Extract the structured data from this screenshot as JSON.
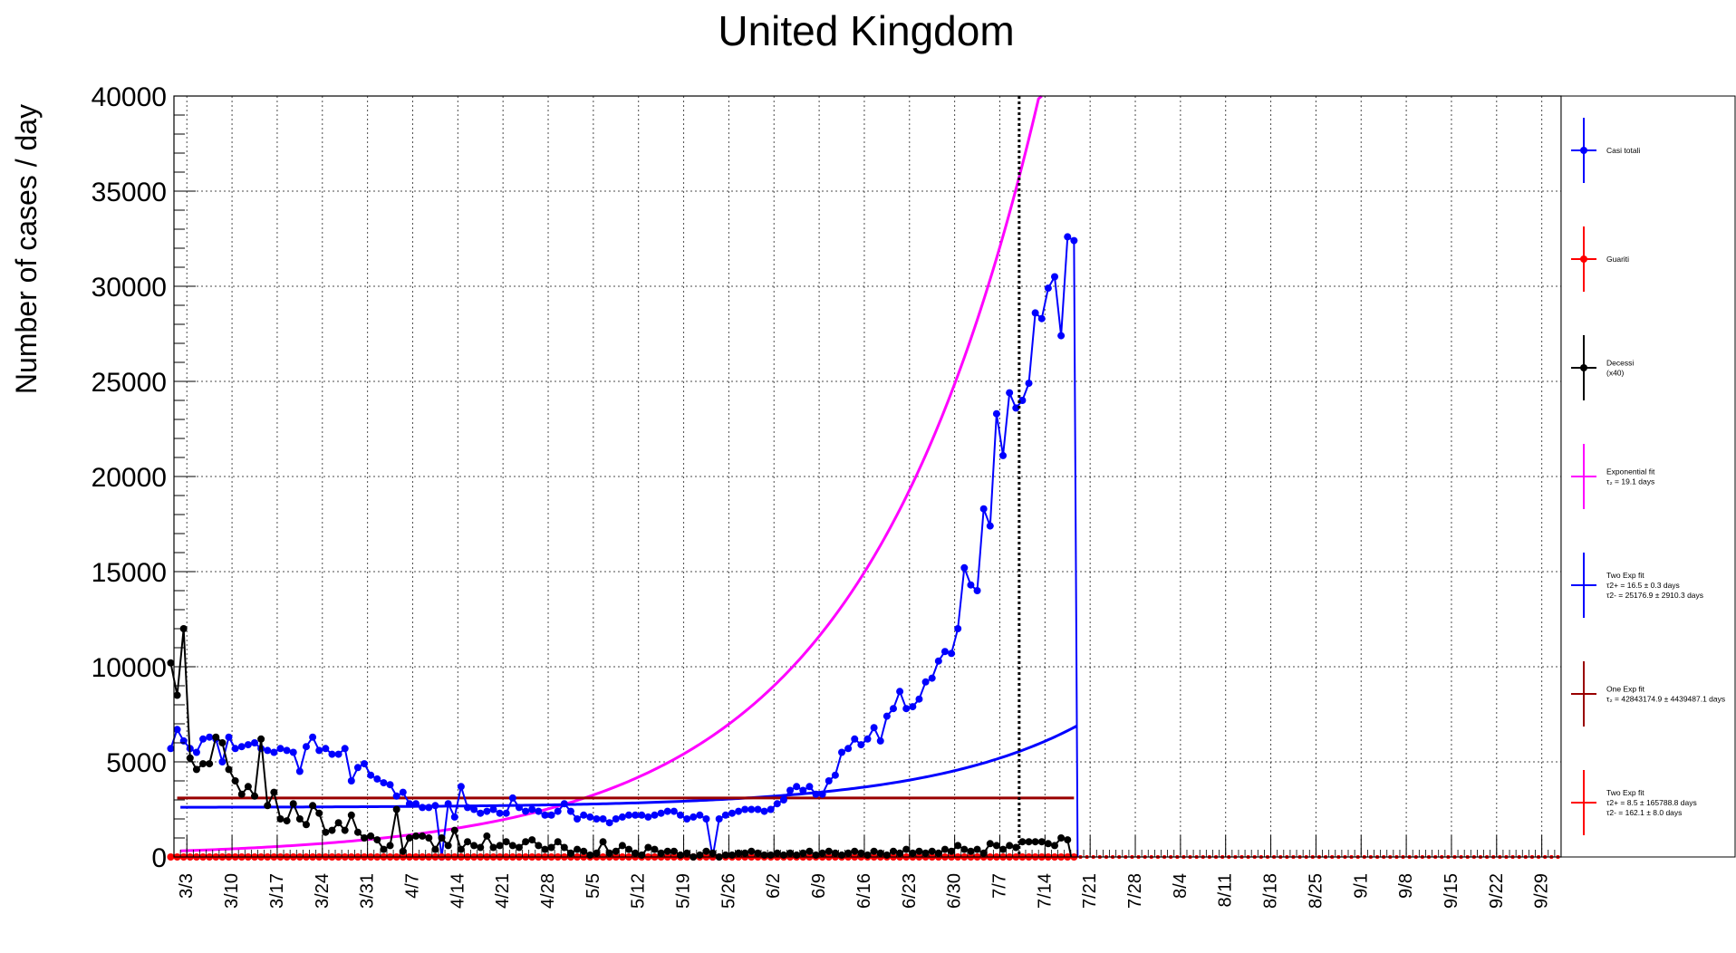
{
  "chart_data": {
    "type": "line",
    "title": "United Kingdom",
    "xlabel": "",
    "ylabel": "Number of cases / day",
    "ylim": [
      0,
      40000
    ],
    "xlim_days_from_mar1": [
      0,
      215
    ],
    "y_ticks": [
      "0",
      "5000",
      "10000",
      "15000",
      "20000",
      "25000",
      "30000",
      "35000",
      "40000"
    ],
    "x_tick_labels": [
      "3/3",
      "3/10",
      "3/17",
      "3/24",
      "3/31",
      "4/7",
      "4/14",
      "4/21",
      "4/28",
      "5/5",
      "5/12",
      "5/19",
      "5/26",
      "6/2",
      "6/9",
      "6/16",
      "6/23",
      "6/30",
      "7/7",
      "7/14",
      "7/21",
      "7/28",
      "8/4",
      "8/11",
      "8/18",
      "8/25",
      "9/1",
      "9/8",
      "9/15",
      "9/22",
      "9/29"
    ],
    "grid": true,
    "legend_position": "right",
    "cutoff_marker": "7/10",
    "colors": {
      "casi": "#0000ff",
      "guariti": "#ff0000",
      "decessi": "#000000",
      "exp_fit": "#ff00ff",
      "two_exp_fit": "#0000ff",
      "one_exp_fit": "#990000",
      "two_exp_fit_recovered": "#ff0000"
    },
    "series": [
      {
        "name": "Casi totali",
        "values": [
          5700,
          6700,
          6100,
          5700,
          5500,
          6200,
          6300,
          6200,
          5000,
          6300,
          5700,
          5800,
          5900,
          6000,
          5700,
          5600,
          5500,
          5700,
          5600,
          5500,
          4500,
          5800,
          6300,
          5600,
          5700,
          5400,
          5400,
          5700,
          4000,
          4700,
          4900,
          4300,
          4100,
          3900,
          3800,
          3200,
          3400,
          2800,
          2800,
          2600,
          2600,
          2700,
          0,
          2800,
          2100,
          3700,
          2600,
          2500,
          2300,
          2400,
          2500,
          2300,
          2300,
          3100,
          2600,
          2400,
          2500,
          2400,
          2200,
          2200,
          2400,
          2800,
          2400,
          2000,
          2200,
          2100,
          2000,
          2000,
          1800,
          2000,
          2100,
          2200,
          2200,
          2200,
          2100,
          2200,
          2300,
          2400,
          2400,
          2200,
          2000,
          2100,
          2200,
          2000,
          0,
          2000,
          2200,
          2300,
          2400,
          2500,
          2500,
          2500,
          2400,
          2500,
          2800,
          3000,
          3500,
          3700,
          3500,
          3700,
          3300,
          3300,
          4000,
          4300,
          5500,
          5700,
          6200,
          5900,
          6200,
          6800,
          6100,
          7400,
          7800,
          8700,
          7800,
          7900,
          8300,
          9200,
          9400,
          10300,
          10800,
          10700,
          12000,
          15200,
          14300,
          14000,
          18300,
          17400,
          23300,
          21100,
          24400,
          23600,
          24000,
          24900,
          28600,
          28300,
          29900,
          30500,
          27400,
          32600,
          32400
        ]
      },
      {
        "name": "Guariti",
        "values": [
          0,
          0,
          0,
          0,
          0,
          0,
          0,
          0,
          0,
          0,
          0,
          0,
          0,
          0,
          0,
          0,
          0,
          0,
          0,
          0,
          0,
          0,
          0,
          0,
          0,
          0,
          0,
          0,
          0,
          0,
          0,
          0,
          0,
          0,
          0,
          0,
          0,
          0,
          0,
          0,
          0,
          0,
          0,
          0,
          0,
          0,
          0,
          0,
          0,
          0,
          0,
          0,
          0,
          0,
          0,
          0,
          0,
          0,
          0,
          0,
          0,
          0,
          0,
          0,
          0,
          0,
          0,
          0,
          0,
          0,
          0,
          0,
          0,
          0,
          0,
          0,
          0,
          0,
          0,
          0,
          0,
          0,
          0,
          0,
          0,
          0,
          0,
          0,
          0,
          0,
          0,
          0,
          0,
          0,
          0,
          0,
          0,
          0,
          0,
          0,
          0,
          0,
          0,
          0,
          0,
          0,
          0,
          0,
          0,
          0,
          0,
          0,
          0,
          0,
          0,
          0,
          0,
          0,
          0,
          0,
          0,
          0,
          0,
          0,
          0,
          0,
          0,
          0,
          0,
          0,
          0,
          0,
          0,
          0,
          0,
          0,
          0,
          0,
          0,
          0,
          0
        ]
      },
      {
        "name": "Decessi",
        "note": "(x40)",
        "values": [
          10200,
          8500,
          12000,
          5200,
          4600,
          4900,
          4900,
          6300,
          6000,
          4600,
          4000,
          3300,
          3700,
          3200,
          6200,
          2700,
          3400,
          2000,
          1900,
          2800,
          2000,
          1700,
          2700,
          2300,
          1300,
          1400,
          1800,
          1400,
          2200,
          1300,
          1000,
          1100,
          900,
          400,
          600,
          2500,
          300,
          1000,
          1100,
          1100,
          1000,
          400,
          1000,
          600,
          1400,
          400,
          800,
          600,
          500,
          1100,
          500,
          600,
          800,
          600,
          500,
          800,
          900,
          600,
          400,
          500,
          800,
          500,
          200,
          400,
          300,
          100,
          200,
          800,
          200,
          300,
          600,
          400,
          200,
          100,
          500,
          400,
          200,
          300,
          300,
          100,
          200,
          0,
          100,
          300,
          200,
          0,
          100,
          100,
          200,
          200,
          300,
          200,
          100,
          100,
          200,
          100,
          200,
          100,
          200,
          300,
          100,
          200,
          300,
          200,
          100,
          200,
          300,
          200,
          100,
          300,
          200,
          100,
          300,
          200,
          400,
          200,
          300,
          200,
          300,
          200,
          400,
          300,
          600,
          400,
          300,
          400,
          200,
          700,
          600,
          400,
          600,
          500,
          800,
          800,
          800,
          800,
          700,
          600,
          1000,
          900
        ]
      }
    ],
    "fits": [
      {
        "name": "Exponential fit",
        "label_lines": [
          "Exponential fit",
          "τ₂ = 19.1  days"
        ],
        "model": "exp",
        "a": 308,
        "tau2": 19.1
      },
      {
        "name": "Two Exp fit",
        "label_lines": [
          "Two Exp fit",
          "τ2+ = 16.5 ± 0.3 days",
          "τ2- = 25176.9 ± 2910.3 days"
        ],
        "model": "two_exp",
        "a": 2600,
        "b": 12,
        "tau2": 16.5
      },
      {
        "name": "One Exp fit",
        "label_lines": [
          "One Exp fit",
          "τ₂ = 42843174.9  ± 4439487.1 days"
        ],
        "model": "const",
        "value": 3100
      },
      {
        "name": "Two Exp fit",
        "label_lines": [
          "Two Exp fit",
          "τ2+ = 8.5 ± 165788.8 days",
          "τ2- = 162.1 ± 8.0 days"
        ],
        "model": "const",
        "value": 0
      }
    ],
    "legend": [
      {
        "lines": [
          "Casi totali"
        ],
        "color": "#0000ff",
        "marker": true
      },
      {
        "lines": [
          "Guariti"
        ],
        "color": "#ff0000",
        "marker": true
      },
      {
        "lines": [
          "Decessi",
          "(x40)"
        ],
        "color": "#000000",
        "marker": true
      },
      {
        "lines": [
          "Exponential fit",
          "τ₂ = 19.1  days"
        ],
        "color": "#ff00ff",
        "marker": false
      },
      {
        "lines": [
          "Two Exp fit",
          "τ2+ = 16.5 ± 0.3 days",
          "τ2- = 25176.9 ± 2910.3 days"
        ],
        "color": "#0000ff",
        "marker": false
      },
      {
        "lines": [
          "One Exp fit",
          "τ₂ = 42843174.9  ± 4439487.1 days"
        ],
        "color": "#990000",
        "marker": false
      },
      {
        "lines": [
          "Two Exp fit",
          "τ2+ = 8.5 ± 165788.8 days",
          "τ2- = 162.1 ± 8.0 days"
        ],
        "color": "#ff0000",
        "marker": false
      }
    ]
  }
}
